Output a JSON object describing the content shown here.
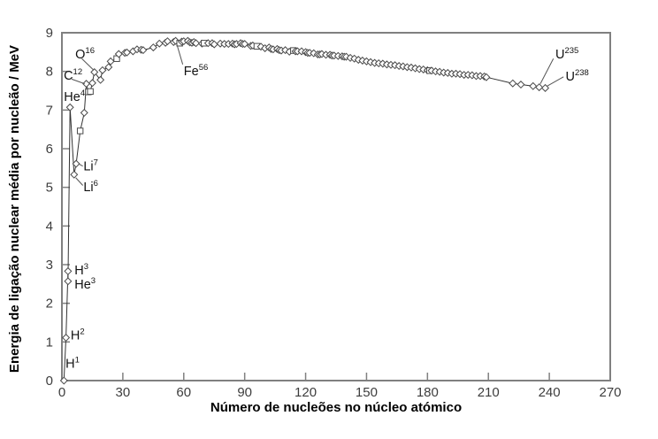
{
  "chart_data": {
    "type": "line",
    "title": "",
    "xlabel": "Número de nucleões no núcleo atómico",
    "ylabel": "Energia de ligação nuclear média por nucleão / MeV",
    "xlim": [
      0,
      270
    ],
    "ylim": [
      0,
      9
    ],
    "xticks": [
      0,
      30,
      60,
      90,
      120,
      150,
      180,
      210,
      240,
      270
    ],
    "yticks": [
      0,
      1,
      2,
      3,
      4,
      5,
      6,
      7,
      8,
      9
    ],
    "grid": false,
    "legend_position": "none",
    "colors": {
      "background": "#ffffff",
      "axis_box": "#808080",
      "line": "#333333",
      "marker_stroke": "#4a4a4a",
      "marker_fill": "#ffffff",
      "tick_text": "#3d3d3d",
      "label_text": "#111111",
      "leader": "#555555"
    },
    "points": [
      [
        1,
        0.0,
        "d"
      ],
      [
        2,
        1.11,
        "d"
      ],
      [
        3,
        2.83,
        "d"
      ],
      [
        3,
        2.57,
        "d"
      ],
      [
        4,
        7.07,
        "d"
      ],
      [
        6,
        5.33,
        "d"
      ],
      [
        7,
        5.61,
        "d"
      ],
      [
        9,
        6.46,
        "s"
      ],
      [
        11,
        6.93,
        "d"
      ],
      [
        12,
        7.68,
        "d"
      ],
      [
        13,
        7.47,
        "s"
      ],
      [
        14,
        7.48,
        "s"
      ],
      [
        15,
        7.7,
        "d"
      ],
      [
        16,
        7.98,
        "d"
      ],
      [
        19,
        7.78,
        "d"
      ],
      [
        20,
        8.03,
        "d"
      ],
      [
        23,
        8.11,
        "d"
      ],
      [
        24,
        8.26,
        "d"
      ],
      [
        27,
        8.33,
        "s"
      ],
      [
        28,
        8.45,
        "d"
      ],
      [
        31,
        8.48,
        "d"
      ],
      [
        32,
        8.49,
        "d"
      ],
      [
        35,
        8.52,
        "d"
      ],
      [
        37,
        8.57,
        "d"
      ],
      [
        39,
        8.56,
        "d"
      ],
      [
        40,
        8.55,
        "d"
      ],
      [
        45,
        8.62,
        "d"
      ],
      [
        48,
        8.72,
        "d"
      ],
      [
        51,
        8.74,
        "d"
      ],
      [
        52,
        8.78,
        "d"
      ],
      [
        55,
        8.76,
        "d"
      ],
      [
        56,
        8.79,
        "d"
      ],
      [
        58,
        8.73,
        "s"
      ],
      [
        59,
        8.77,
        "d"
      ],
      [
        60,
        8.78,
        "d"
      ],
      [
        62,
        8.79,
        "d"
      ],
      [
        63,
        8.75,
        "d"
      ],
      [
        64,
        8.74,
        "d"
      ],
      [
        65,
        8.76,
        "d"
      ],
      [
        66,
        8.73,
        "d"
      ],
      [
        69,
        8.72,
        "d"
      ],
      [
        70,
        8.73,
        "s"
      ],
      [
        72,
        8.73,
        "d"
      ],
      [
        74,
        8.73,
        "d"
      ],
      [
        75,
        8.7,
        "d"
      ],
      [
        78,
        8.72,
        "d"
      ],
      [
        80,
        8.71,
        "d"
      ],
      [
        82,
        8.71,
        "d"
      ],
      [
        84,
        8.72,
        "d"
      ],
      [
        85,
        8.7,
        "d"
      ],
      [
        86,
        8.71,
        "d"
      ],
      [
        88,
        8.73,
        "d"
      ],
      [
        89,
        8.71,
        "d"
      ],
      [
        90,
        8.71,
        "d"
      ],
      [
        93,
        8.66,
        "d"
      ],
      [
        94,
        8.67,
        "d"
      ],
      [
        96,
        8.65,
        "s"
      ],
      [
        98,
        8.64,
        "d"
      ],
      [
        100,
        8.6,
        "d"
      ],
      [
        102,
        8.62,
        "d"
      ],
      [
        103,
        8.58,
        "d"
      ],
      [
        104,
        8.57,
        "d"
      ],
      [
        106,
        8.58,
        "d"
      ],
      [
        107,
        8.55,
        "d"
      ],
      [
        108,
        8.54,
        "d"
      ],
      [
        110,
        8.55,
        "d"
      ],
      [
        112,
        8.51,
        "d"
      ],
      [
        114,
        8.54,
        "s"
      ],
      [
        115,
        8.52,
        "d"
      ],
      [
        116,
        8.52,
        "d"
      ],
      [
        118,
        8.52,
        "d"
      ],
      [
        120,
        8.5,
        "d"
      ],
      [
        121,
        8.48,
        "d"
      ],
      [
        122,
        8.48,
        "d"
      ],
      [
        124,
        8.47,
        "d"
      ],
      [
        126,
        8.44,
        "d"
      ],
      [
        127,
        8.44,
        "d"
      ],
      [
        128,
        8.45,
        "d"
      ],
      [
        130,
        8.43,
        "d"
      ],
      [
        132,
        8.43,
        "d"
      ],
      [
        133,
        8.41,
        "d"
      ],
      [
        134,
        8.41,
        "d"
      ],
      [
        136,
        8.4,
        "d"
      ],
      [
        138,
        8.39,
        "d"
      ],
      [
        139,
        8.38,
        "d"
      ],
      [
        140,
        8.38,
        "d"
      ],
      [
        142,
        8.35,
        "d"
      ],
      [
        144,
        8.33,
        "d"
      ],
      [
        146,
        8.3,
        "d"
      ],
      [
        148,
        8.28,
        "d"
      ],
      [
        150,
        8.26,
        "d"
      ],
      [
        152,
        8.24,
        "d"
      ],
      [
        154,
        8.22,
        "d"
      ],
      [
        156,
        8.21,
        "d"
      ],
      [
        158,
        8.2,
        "d"
      ],
      [
        160,
        8.18,
        "d"
      ],
      [
        162,
        8.17,
        "d"
      ],
      [
        164,
        8.16,
        "d"
      ],
      [
        166,
        8.14,
        "d"
      ],
      [
        168,
        8.13,
        "d"
      ],
      [
        170,
        8.11,
        "d"
      ],
      [
        172,
        8.1,
        "d"
      ],
      [
        174,
        8.08,
        "d"
      ],
      [
        176,
        8.06,
        "d"
      ],
      [
        178,
        8.05,
        "d"
      ],
      [
        180,
        8.03,
        "d"
      ],
      [
        181,
        8.02,
        "s"
      ],
      [
        182,
        8.02,
        "d"
      ],
      [
        184,
        8.0,
        "d"
      ],
      [
        186,
        7.99,
        "d"
      ],
      [
        188,
        7.97,
        "d"
      ],
      [
        190,
        7.96,
        "d"
      ],
      [
        192,
        7.94,
        "d"
      ],
      [
        194,
        7.94,
        "d"
      ],
      [
        196,
        7.93,
        "d"
      ],
      [
        198,
        7.91,
        "d"
      ],
      [
        200,
        7.91,
        "d"
      ],
      [
        202,
        7.9,
        "d"
      ],
      [
        204,
        7.88,
        "d"
      ],
      [
        206,
        7.88,
        "d"
      ],
      [
        208,
        7.87,
        "d"
      ],
      [
        209,
        7.85,
        "d"
      ],
      [
        222,
        7.69,
        "d"
      ],
      [
        226,
        7.66,
        "d"
      ],
      [
        232,
        7.62,
        "d"
      ],
      [
        235,
        7.59,
        "d"
      ],
      [
        238,
        7.57,
        "d"
      ]
    ],
    "annotations": [
      {
        "text": "H",
        "sup": "1",
        "x": 1.8,
        "y": 0.45,
        "leader": null
      },
      {
        "text": "H",
        "sup": "2",
        "x": 4.3,
        "y": 1.18,
        "leader": null
      },
      {
        "text": "H",
        "sup": "3",
        "x": 6.2,
        "y": 2.86,
        "leader": null
      },
      {
        "text": "He",
        "sup": "3",
        "x": 6.2,
        "y": 2.5,
        "leader": null
      },
      {
        "text": "He",
        "sup": "4",
        "x": 1.0,
        "y": 7.35,
        "leader": null
      },
      {
        "text": "Li",
        "sup": "7",
        "x": 10.6,
        "y": 5.55,
        "leader": {
          "x1": 8.2,
          "y1": 5.61,
          "x2": 10.3,
          "y2": 5.55
        }
      },
      {
        "text": "Li",
        "sup": "6",
        "x": 10.6,
        "y": 5.02,
        "leader": {
          "x1": 6.8,
          "y1": 5.25,
          "x2": 10.3,
          "y2": 5.05
        }
      },
      {
        "text": "C",
        "sup": "12",
        "x": 0.9,
        "y": 7.9,
        "leader": {
          "x1": 4.8,
          "y1": 7.8,
          "x2": 11.2,
          "y2": 7.68
        }
      },
      {
        "text": "O",
        "sup": "16",
        "x": 6.6,
        "y": 8.45,
        "leader": {
          "x1": 9.8,
          "y1": 8.33,
          "x2": 15.7,
          "y2": 8.03
        }
      },
      {
        "text": "Fe",
        "sup": "56",
        "x": 60.0,
        "y": 8.02,
        "leader": {
          "x1": 59.5,
          "y1": 8.18,
          "x2": 56.6,
          "y2": 8.7
        }
      },
      {
        "text": "U",
        "sup": "235",
        "x": 243.0,
        "y": 8.45,
        "leader": {
          "x1": 242.0,
          "y1": 8.33,
          "x2": 235.6,
          "y2": 7.68
        }
      },
      {
        "text": "U",
        "sup": "238",
        "x": 248.0,
        "y": 7.88,
        "leader": {
          "x1": 247.0,
          "y1": 7.86,
          "x2": 238.9,
          "y2": 7.62
        }
      }
    ]
  }
}
